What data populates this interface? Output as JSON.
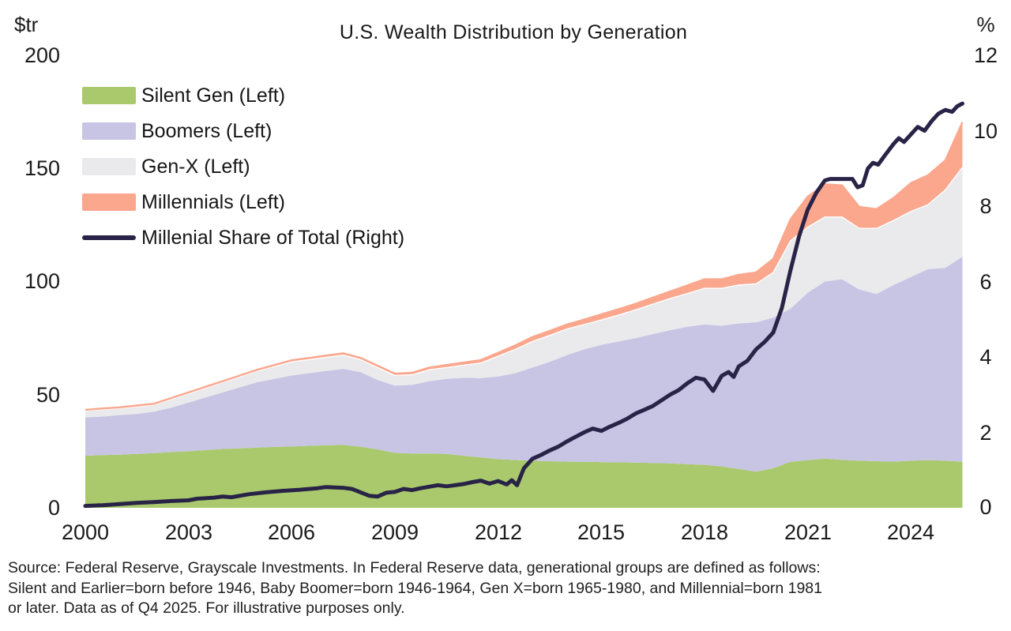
{
  "title": "U.S. Wealth Distribution by Generation",
  "left_axis": {
    "unit": "$tr",
    "ticks": [
      "200",
      "150",
      "100",
      "50",
      "0"
    ]
  },
  "right_axis": {
    "unit": "%",
    "ticks": [
      "12",
      "10",
      "8",
      "6",
      "4",
      "2",
      "0"
    ]
  },
  "x_axis": {
    "ticks": [
      "2000",
      "2003",
      "2006",
      "2009",
      "2012",
      "2015",
      "2018",
      "2021",
      "2024"
    ]
  },
  "legend": [
    {
      "label": "Silent Gen (Left)",
      "color": "#a9c96c",
      "type": "area"
    },
    {
      "label": "Boomers (Left)",
      "color": "#c8c4e4",
      "type": "area"
    },
    {
      "label": "Gen-X (Left)",
      "color": "#eaeaec",
      "type": "area"
    },
    {
      "label": "Millennials (Left)",
      "color": "#faa78e",
      "type": "area"
    },
    {
      "label": "Millenial Share of Total (Right)",
      "color": "#292347",
      "type": "line"
    }
  ],
  "source_note": {
    "lines": [
      "Source: Federal Reserve, Grayscale Investments. In Federal Reserve data, generational groups are defined as follows:",
      "Silent and Earlier=born before 1946, Baby Boomer=born 1946-1964, Gen X=born 1965-1980, and Millennial=born 1981",
      "or later. Data as of Q4 2025. For illustrative purposes only."
    ]
  },
  "chart_data": {
    "type": "area",
    "stacked": true,
    "title": "U.S. Wealth Distribution by Generation",
    "ylabel_left": "$tr",
    "ylabel_right": "%",
    "ylim_left": [
      0,
      200
    ],
    "ylim_right": [
      0,
      12
    ],
    "x_range": [
      2000,
      2025.5
    ],
    "grid": false,
    "legend_position": "top-left",
    "x": [
      2000,
      2000.5,
      2001,
      2001.5,
      2002,
      2002.5,
      2003,
      2003.5,
      2004,
      2004.5,
      2005,
      2005.5,
      2006,
      2006.5,
      2007,
      2007.5,
      2008,
      2008.5,
      2009,
      2009.5,
      2010,
      2010.5,
      2011,
      2011.5,
      2012,
      2012.5,
      2013,
      2013.5,
      2014,
      2014.5,
      2015,
      2015.5,
      2016,
      2016.5,
      2017,
      2017.5,
      2018,
      2018.5,
      2019,
      2019.5,
      2020,
      2020.5,
      2021,
      2021.5,
      2022,
      2022.5,
      2023,
      2023.5,
      2024,
      2024.5,
      2025,
      2025.5
    ],
    "series": [
      {
        "name": "Silent Gen",
        "axis": "left",
        "color": "#a9c96c",
        "values": [
          23.0,
          23.3,
          23.5,
          23.8,
          24.2,
          24.6,
          25.0,
          25.5,
          26.0,
          26.3,
          26.6,
          26.9,
          27.1,
          27.4,
          27.6,
          27.8,
          27.0,
          25.8,
          24.3,
          24.0,
          24.0,
          23.8,
          23.0,
          22.3,
          21.5,
          21.1,
          20.8,
          20.6,
          20.4,
          20.3,
          20.2,
          20.1,
          20.0,
          19.8,
          19.6,
          19.3,
          19.0,
          18.3,
          17.2,
          16.0,
          17.5,
          20.3,
          21.0,
          21.7,
          21.2,
          20.8,
          20.6,
          20.4,
          20.8,
          21.0,
          20.8,
          20.4
        ]
      },
      {
        "name": "Boomers",
        "axis": "left",
        "color": "#c8c4e4",
        "values": [
          17.0,
          17.0,
          17.5,
          17.7,
          18.3,
          19.7,
          21.5,
          23.3,
          25.0,
          27.0,
          28.9,
          30.1,
          31.4,
          32.1,
          32.9,
          33.6,
          33.0,
          30.7,
          29.7,
          30.3,
          32.0,
          33.2,
          34.5,
          35.0,
          36.5,
          38.4,
          41.2,
          43.9,
          47.1,
          49.7,
          51.8,
          53.4,
          55.0,
          57.0,
          58.9,
          60.7,
          62.0,
          62.2,
          64.3,
          66.0,
          66.5,
          67.7,
          74.0,
          78.3,
          79.8,
          75.7,
          73.9,
          78.1,
          81.2,
          84.5,
          85.2,
          90.6
        ]
      },
      {
        "name": "Gen-X",
        "axis": "left",
        "color": "#eaeaec",
        "values": [
          3.0,
          3.2,
          3.0,
          3.2,
          3.0,
          3.7,
          4.0,
          4.2,
          4.5,
          4.7,
          5.0,
          5.5,
          6.0,
          6.0,
          6.0,
          6.1,
          5.5,
          5.5,
          4.5,
          4.5,
          5.0,
          5.0,
          5.5,
          6.7,
          9.0,
          10.5,
          11.5,
          11.7,
          11.5,
          11.0,
          11.0,
          11.7,
          12.5,
          13.2,
          14.0,
          14.7,
          16.0,
          16.5,
          17.0,
          17.0,
          20.0,
          30.0,
          29.0,
          28.5,
          27.5,
          27.0,
          29.0,
          28.5,
          29.0,
          28.5,
          34.5,
          39.5
        ]
      },
      {
        "name": "Millennials",
        "axis": "left",
        "color": "#faa78e",
        "values": [
          0.3,
          0.4,
          0.4,
          0.5,
          0.5,
          0.5,
          0.5,
          0.5,
          0.5,
          0.5,
          0.5,
          0.6,
          0.7,
          0.7,
          0.8,
          0.8,
          0.8,
          0.8,
          0.8,
          0.9,
          1.0,
          1.1,
          1.2,
          1.3,
          1.5,
          1.8,
          2.0,
          2.0,
          2.0,
          2.2,
          2.5,
          2.6,
          2.7,
          2.9,
          3.1,
          3.6,
          4.0,
          4.0,
          4.5,
          5.0,
          6.0,
          9.5,
          13.5,
          14.5,
          14.0,
          9.5,
          8.5,
          10.0,
          12.5,
          13.0,
          13.0,
          19.9
        ]
      }
    ],
    "line": {
      "name": "Millenial Share of Total",
      "axis": "right",
      "color": "#292347",
      "points": [
        [
          2000,
          0.05
        ],
        [
          2000.5,
          0.07
        ],
        [
          2001,
          0.1
        ],
        [
          2001.5,
          0.13
        ],
        [
          2002,
          0.15
        ],
        [
          2002.5,
          0.18
        ],
        [
          2003,
          0.2
        ],
        [
          2003.25,
          0.24
        ],
        [
          2003.75,
          0.27
        ],
        [
          2004,
          0.3
        ],
        [
          2004.25,
          0.28
        ],
        [
          2004.75,
          0.36
        ],
        [
          2005.25,
          0.41
        ],
        [
          2005.75,
          0.45
        ],
        [
          2006.25,
          0.48
        ],
        [
          2006.75,
          0.52
        ],
        [
          2007,
          0.55
        ],
        [
          2007.5,
          0.53
        ],
        [
          2007.75,
          0.5
        ],
        [
          2008.25,
          0.32
        ],
        [
          2008.5,
          0.3
        ],
        [
          2008.75,
          0.4
        ],
        [
          2009,
          0.42
        ],
        [
          2009.25,
          0.5
        ],
        [
          2009.5,
          0.47
        ],
        [
          2009.75,
          0.52
        ],
        [
          2010,
          0.56
        ],
        [
          2010.25,
          0.6
        ],
        [
          2010.5,
          0.57
        ],
        [
          2010.75,
          0.6
        ],
        [
          2011,
          0.63
        ],
        [
          2011.25,
          0.68
        ],
        [
          2011.5,
          0.72
        ],
        [
          2011.75,
          0.64
        ],
        [
          2012,
          0.71
        ],
        [
          2012.25,
          0.62
        ],
        [
          2012.4,
          0.73
        ],
        [
          2012.55,
          0.6
        ],
        [
          2012.75,
          1.05
        ],
        [
          2013,
          1.3
        ],
        [
          2013.25,
          1.4
        ],
        [
          2013.5,
          1.52
        ],
        [
          2013.75,
          1.62
        ],
        [
          2014,
          1.76
        ],
        [
          2014.25,
          1.88
        ],
        [
          2014.5,
          2.0
        ],
        [
          2014.75,
          2.1
        ],
        [
          2015,
          2.04
        ],
        [
          2015.25,
          2.15
        ],
        [
          2015.5,
          2.25
        ],
        [
          2015.75,
          2.36
        ],
        [
          2016,
          2.5
        ],
        [
          2016.25,
          2.6
        ],
        [
          2016.5,
          2.7
        ],
        [
          2016.75,
          2.85
        ],
        [
          2017,
          3.0
        ],
        [
          2017.25,
          3.12
        ],
        [
          2017.5,
          3.3
        ],
        [
          2017.75,
          3.45
        ],
        [
          2018,
          3.4
        ],
        [
          2018.25,
          3.1
        ],
        [
          2018.5,
          3.5
        ],
        [
          2018.7,
          3.6
        ],
        [
          2018.85,
          3.47
        ],
        [
          2019,
          3.75
        ],
        [
          2019.25,
          3.9
        ],
        [
          2019.5,
          4.2
        ],
        [
          2019.75,
          4.4
        ],
        [
          2020,
          4.65
        ],
        [
          2020.25,
          5.3
        ],
        [
          2020.5,
          6.3
        ],
        [
          2020.75,
          7.2
        ],
        [
          2021,
          7.9
        ],
        [
          2021.25,
          8.35
        ],
        [
          2021.5,
          8.68
        ],
        [
          2021.65,
          8.72
        ],
        [
          2022.3,
          8.72
        ],
        [
          2022.45,
          8.5
        ],
        [
          2022.6,
          8.55
        ],
        [
          2022.75,
          9.0
        ],
        [
          2022.9,
          9.15
        ],
        [
          2023.05,
          9.1
        ],
        [
          2023.25,
          9.35
        ],
        [
          2023.5,
          9.65
        ],
        [
          2023.65,
          9.8
        ],
        [
          2023.8,
          9.7
        ],
        [
          2024,
          9.9
        ],
        [
          2024.2,
          10.1
        ],
        [
          2024.4,
          10.0
        ],
        [
          2024.6,
          10.25
        ],
        [
          2024.8,
          10.45
        ],
        [
          2025,
          10.55
        ],
        [
          2025.2,
          10.5
        ],
        [
          2025.35,
          10.65
        ],
        [
          2025.5,
          10.72
        ]
      ]
    }
  }
}
